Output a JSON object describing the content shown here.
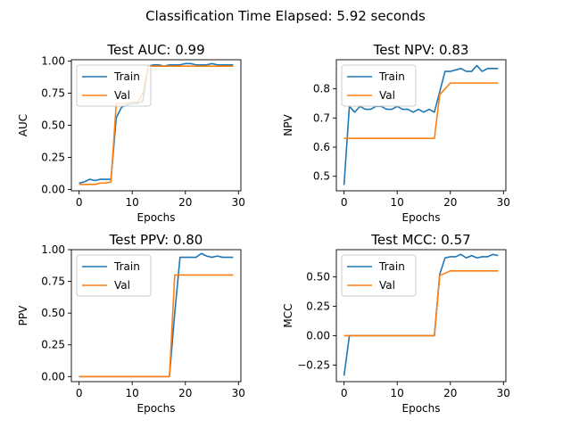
{
  "figure": {
    "suptitle": "Classification Time Elapsed: 5.92 seconds"
  },
  "chart_data": [
    {
      "type": "line",
      "title": "Test AUC: 0.99",
      "xlabel": "Epochs",
      "ylabel": "AUC",
      "xlim": [
        -1.45,
        30.45
      ],
      "ylim": [
        -0.01,
        1.01
      ],
      "xticks": [
        0,
        10,
        20,
        30
      ],
      "yticks": [
        0.0,
        0.25,
        0.5,
        0.75,
        1.0
      ],
      "ytick_labels": [
        "0.00",
        "0.25",
        "0.50",
        "0.75",
        "1.00"
      ],
      "legend": "top-left",
      "x": [
        0,
        1,
        2,
        3,
        4,
        5,
        6,
        7,
        8,
        9,
        10,
        11,
        12,
        13,
        14,
        15,
        16,
        17,
        18,
        19,
        20,
        21,
        22,
        23,
        24,
        25,
        26,
        27,
        28,
        29
      ],
      "series": [
        {
          "name": "Train",
          "color": "#1f77b4",
          "values": [
            0.05,
            0.06,
            0.08,
            0.07,
            0.08,
            0.08,
            0.08,
            0.56,
            0.64,
            0.66,
            0.67,
            0.67,
            0.69,
            0.96,
            0.97,
            0.97,
            0.96,
            0.97,
            0.97,
            0.97,
            0.98,
            0.98,
            0.97,
            0.97,
            0.97,
            0.98,
            0.97,
            0.97,
            0.97,
            0.97
          ]
        },
        {
          "name": "Val",
          "color": "#ff7f0e",
          "values": [
            0.04,
            0.04,
            0.04,
            0.04,
            0.05,
            0.05,
            0.06,
            0.67,
            0.67,
            0.67,
            0.68,
            0.68,
            0.75,
            0.96,
            0.96,
            0.96,
            0.96,
            0.96,
            0.96,
            0.96,
            0.96,
            0.96,
            0.96,
            0.96,
            0.96,
            0.96,
            0.96,
            0.96,
            0.96,
            0.96
          ]
        }
      ]
    },
    {
      "type": "line",
      "title": "Test NPV: 0.83",
      "xlabel": "Epochs",
      "ylabel": "NPV",
      "xlim": [
        -1.45,
        30.45
      ],
      "ylim": [
        0.45,
        0.9
      ],
      "xticks": [
        0,
        10,
        20,
        30
      ],
      "yticks": [
        0.5,
        0.6,
        0.7,
        0.8
      ],
      "ytick_labels": [
        "0.5",
        "0.6",
        "0.7",
        "0.8"
      ],
      "legend": "top-left",
      "x": [
        0,
        1,
        2,
        3,
        4,
        5,
        6,
        7,
        8,
        9,
        10,
        11,
        12,
        13,
        14,
        15,
        16,
        17,
        18,
        19,
        20,
        21,
        22,
        23,
        24,
        25,
        26,
        27,
        28,
        29
      ],
      "series": [
        {
          "name": "Train",
          "color": "#1f77b4",
          "values": [
            0.47,
            0.74,
            0.72,
            0.74,
            0.73,
            0.73,
            0.74,
            0.74,
            0.73,
            0.73,
            0.74,
            0.73,
            0.73,
            0.72,
            0.73,
            0.72,
            0.73,
            0.72,
            0.79,
            0.86,
            0.86,
            0.865,
            0.87,
            0.86,
            0.86,
            0.88,
            0.86,
            0.87,
            0.87,
            0.87
          ]
        },
        {
          "name": "Val",
          "color": "#ff7f0e",
          "values": [
            0.63,
            0.63,
            0.63,
            0.63,
            0.63,
            0.63,
            0.63,
            0.63,
            0.63,
            0.63,
            0.63,
            0.63,
            0.63,
            0.63,
            0.63,
            0.63,
            0.63,
            0.63,
            0.78,
            0.8,
            0.82,
            0.82,
            0.82,
            0.82,
            0.82,
            0.82,
            0.82,
            0.82,
            0.82,
            0.82
          ]
        }
      ]
    },
    {
      "type": "line",
      "title": "Test PPV: 0.80",
      "xlabel": "Epochs",
      "ylabel": "PPV",
      "xlim": [
        -1.45,
        30.45
      ],
      "ylim": [
        -0.04,
        1.0
      ],
      "xticks": [
        0,
        10,
        20,
        30
      ],
      "yticks": [
        0.0,
        0.25,
        0.5,
        0.75,
        1.0
      ],
      "ytick_labels": [
        "0.00",
        "0.25",
        "0.50",
        "0.75",
        "1.00"
      ],
      "legend": "top-left",
      "x": [
        0,
        1,
        2,
        3,
        4,
        5,
        6,
        7,
        8,
        9,
        10,
        11,
        12,
        13,
        14,
        15,
        16,
        17,
        18,
        19,
        20,
        21,
        22,
        23,
        24,
        25,
        26,
        27,
        28,
        29
      ],
      "series": [
        {
          "name": "Train",
          "color": "#1f77b4",
          "values": [
            0.0,
            0.0,
            0.0,
            0.0,
            0.0,
            0.0,
            0.0,
            0.0,
            0.0,
            0.0,
            0.0,
            0.0,
            0.0,
            0.0,
            0.0,
            0.0,
            0.0,
            0.0,
            0.5,
            0.94,
            0.94,
            0.94,
            0.94,
            0.97,
            0.95,
            0.94,
            0.95,
            0.94,
            0.94,
            0.94
          ]
        },
        {
          "name": "Val",
          "color": "#ff7f0e",
          "values": [
            0.0,
            0.0,
            0.0,
            0.0,
            0.0,
            0.0,
            0.0,
            0.0,
            0.0,
            0.0,
            0.0,
            0.0,
            0.0,
            0.0,
            0.0,
            0.0,
            0.0,
            0.0,
            0.8,
            0.8,
            0.8,
            0.8,
            0.8,
            0.8,
            0.8,
            0.8,
            0.8,
            0.8,
            0.8,
            0.8
          ]
        }
      ]
    },
    {
      "type": "line",
      "title": "Test MCC: 0.57",
      "xlabel": "Epochs",
      "ylabel": "MCC",
      "xlim": [
        -1.45,
        30.45
      ],
      "ylim": [
        -0.39,
        0.73
      ],
      "xticks": [
        0,
        10,
        20,
        30
      ],
      "yticks": [
        -0.25,
        0.0,
        0.25,
        0.5
      ],
      "ytick_labels": [
        "−0.25",
        "0.00",
        "0.25",
        "0.50"
      ],
      "legend": "top-left",
      "x": [
        0,
        1,
        2,
        3,
        4,
        5,
        6,
        7,
        8,
        9,
        10,
        11,
        12,
        13,
        14,
        15,
        16,
        17,
        18,
        19,
        20,
        21,
        22,
        23,
        24,
        25,
        26,
        27,
        28,
        29
      ],
      "series": [
        {
          "name": "Train",
          "color": "#1f77b4",
          "values": [
            -0.34,
            0.0,
            0.0,
            0.0,
            0.0,
            0.0,
            0.0,
            0.0,
            0.0,
            0.0,
            0.0,
            0.0,
            0.0,
            0.0,
            0.0,
            0.0,
            0.0,
            0.0,
            0.52,
            0.66,
            0.67,
            0.67,
            0.69,
            0.66,
            0.68,
            0.66,
            0.67,
            0.67,
            0.69,
            0.68
          ]
        },
        {
          "name": "Val",
          "color": "#ff7f0e",
          "values": [
            0.0,
            0.0,
            0.0,
            0.0,
            0.0,
            0.0,
            0.0,
            0.0,
            0.0,
            0.0,
            0.0,
            0.0,
            0.0,
            0.0,
            0.0,
            0.0,
            0.0,
            0.0,
            0.51,
            0.53,
            0.55,
            0.55,
            0.55,
            0.55,
            0.55,
            0.55,
            0.55,
            0.55,
            0.55,
            0.55
          ]
        }
      ]
    }
  ]
}
